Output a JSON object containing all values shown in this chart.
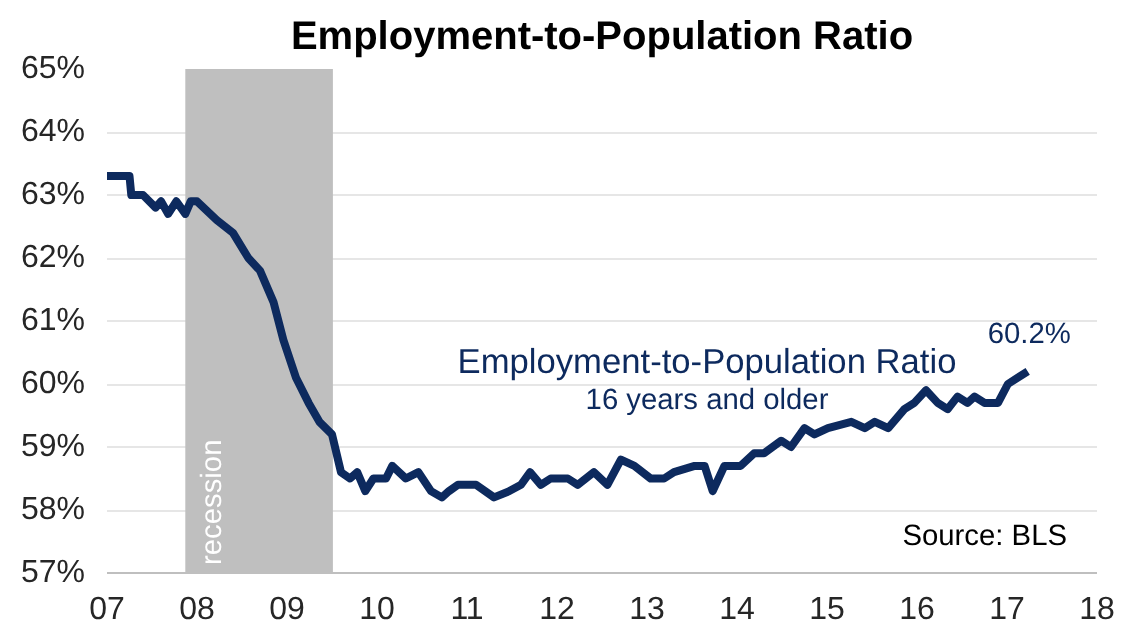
{
  "chart_data": {
    "type": "line",
    "title": "Employment-to-Population Ratio",
    "x": [
      2007.0,
      2007.25,
      2007.27,
      2007.4,
      2007.54,
      2007.6,
      2007.68,
      2007.77,
      2007.87,
      2007.93,
      2008.0,
      2008.22,
      2008.4,
      2008.57,
      2008.7,
      2008.85,
      2008.96,
      2009.1,
      2009.24,
      2009.36,
      2009.5,
      2009.6,
      2009.7,
      2009.78,
      2009.87,
      2009.96,
      2010.1,
      2010.17,
      2010.32,
      2010.46,
      2010.6,
      2010.72,
      2010.8,
      2010.9,
      2011.1,
      2011.3,
      2011.47,
      2011.6,
      2011.7,
      2011.82,
      2011.93,
      2012.12,
      2012.23,
      2012.41,
      2012.56,
      2012.71,
      2012.86,
      2013.04,
      2013.19,
      2013.3,
      2013.53,
      2013.64,
      2013.73,
      2013.86,
      2014.04,
      2014.19,
      2014.3,
      2014.49,
      2014.6,
      2014.75,
      2014.86,
      2015.01,
      2015.27,
      2015.42,
      2015.53,
      2015.68,
      2015.86,
      2015.97,
      2016.1,
      2016.23,
      2016.34,
      2016.45,
      2016.56,
      2016.64,
      2016.75,
      2016.9,
      2017.01,
      2017.12,
      2017.23
    ],
    "series": [
      {
        "color": "#0d2a5e",
        "values": [
          63.3,
          63.3,
          63.0,
          63.0,
          62.8,
          62.9,
          62.7,
          62.9,
          62.7,
          62.9,
          62.9,
          62.6,
          62.4,
          62.0,
          61.8,
          61.3,
          60.7,
          60.1,
          59.7,
          59.4,
          59.2,
          58.6,
          58.5,
          58.6,
          58.3,
          58.5,
          58.5,
          58.7,
          58.5,
          58.6,
          58.3,
          58.2,
          58.3,
          58.4,
          58.4,
          58.2,
          58.3,
          58.4,
          58.6,
          58.4,
          58.5,
          58.5,
          58.4,
          58.6,
          58.4,
          58.8,
          58.7,
          58.5,
          58.5,
          58.6,
          58.7,
          58.7,
          58.3,
          58.7,
          58.7,
          58.9,
          58.9,
          59.1,
          59.0,
          59.3,
          59.2,
          59.3,
          59.4,
          59.3,
          59.4,
          59.3,
          59.6,
          59.7,
          59.9,
          59.7,
          59.6,
          59.8,
          59.7,
          59.8,
          59.7,
          59.7,
          60.0,
          60.1,
          60.2
        ]
      }
    ],
    "xlim": [
      2007,
      2018
    ],
    "xticks": [
      {
        "value": 2007,
        "label": "07"
      },
      {
        "value": 2008,
        "label": "08"
      },
      {
        "value": 2009,
        "label": "09"
      },
      {
        "value": 2010,
        "label": "10"
      },
      {
        "value": 2011,
        "label": "11"
      },
      {
        "value": 2012,
        "label": "12"
      },
      {
        "value": 2013,
        "label": "13"
      },
      {
        "value": 2014,
        "label": "14"
      },
      {
        "value": 2015,
        "label": "15"
      },
      {
        "value": 2016,
        "label": "16"
      },
      {
        "value": 2017,
        "label": "17"
      },
      {
        "value": 2018,
        "label": "18"
      }
    ],
    "ylim": [
      57,
      65
    ],
    "yticks": [
      {
        "value": 57,
        "label": "57%"
      },
      {
        "value": 58,
        "label": "58%"
      },
      {
        "value": 59,
        "label": "59%"
      },
      {
        "value": 60,
        "label": "60%"
      },
      {
        "value": 61,
        "label": "61%"
      },
      {
        "value": 62,
        "label": "62%"
      },
      {
        "value": 63,
        "label": "63%"
      },
      {
        "value": 64,
        "label": "64%"
      },
      {
        "value": 65,
        "label": "65%"
      }
    ],
    "bands": [
      {
        "axis": "x",
        "from": 2007.87,
        "to": 2009.51,
        "label": "recession",
        "color": "#bfbfbf"
      }
    ],
    "annotations": [
      {
        "text": "60.2%",
        "x": 2017.23,
        "y": 60.2
      },
      "Employment-to-Population Ratio",
      "16 years and older",
      "Source: BLS"
    ],
    "grid": "y",
    "line_style": "solid",
    "marker": "none"
  }
}
